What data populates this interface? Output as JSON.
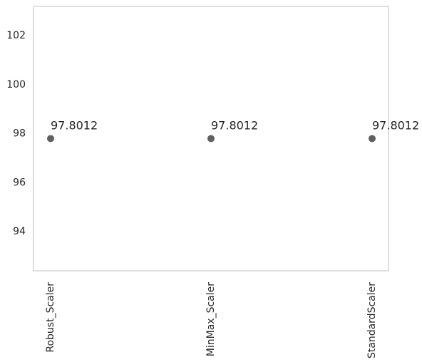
{
  "chart_data": {
    "type": "scatter",
    "title": "",
    "xlabel": "",
    "ylabel": "",
    "categories": [
      "Robust_Scaler",
      "MinMax_Scaler",
      "StandardScaler"
    ],
    "values": [
      97.8012,
      97.8012,
      97.8012
    ],
    "data_labels": [
      "97.8012",
      "97.8012",
      "97.8012"
    ],
    "ylim": [
      92.4,
      103.2
    ],
    "yticks": [
      94,
      96,
      98,
      100,
      102
    ],
    "ytick_labels": [
      "94",
      "96",
      "98",
      "100",
      "102"
    ],
    "grid": false,
    "legend": "none",
    "marker_color": "#606060",
    "frame_color": "#cccccc"
  }
}
